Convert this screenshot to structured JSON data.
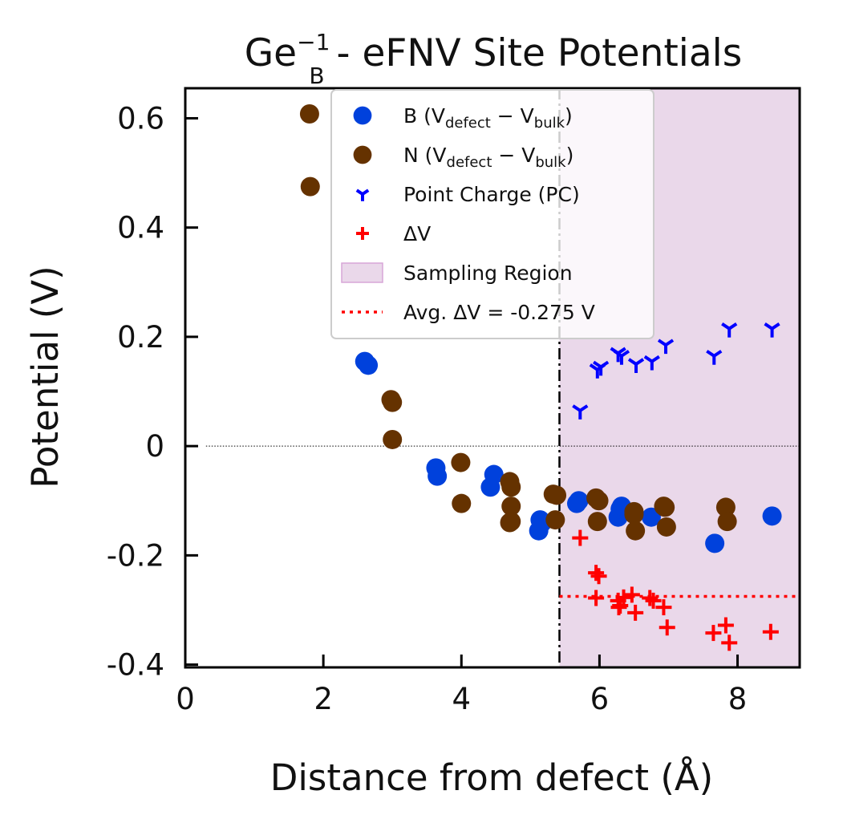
{
  "chart_data": {
    "type": "scatter",
    "title": {
      "prefix": "Ge",
      "sub": "B",
      "sup": "−1",
      "suffix": " - eFNV Site Potentials"
    },
    "xlabel": "Distance from defect (Å)",
    "ylabel": "Potential (V)",
    "xlim": [
      0,
      8.9
    ],
    "ylim": [
      -0.405,
      0.655
    ],
    "xticks": [
      0,
      2,
      4,
      6,
      8
    ],
    "xtick_labels": [
      "0",
      "2",
      "4",
      "6",
      "8"
    ],
    "yticks": [
      -0.4,
      -0.2,
      0,
      0.2,
      0.4,
      0.6
    ],
    "ytick_labels": [
      "-0.4",
      "-0.2",
      "0",
      "0.2",
      "0.4",
      "0.6"
    ],
    "grid": false,
    "zero_line": true,
    "sampling_region": {
      "x_start": 5.42,
      "x_end": 8.9,
      "color": "#ead8ea"
    },
    "avg_delta_v": {
      "value": -0.275,
      "x_start": 5.42,
      "x_end": 8.9,
      "color": "#ff0000"
    },
    "legend_placement": "upper-center",
    "legend": [
      {
        "marker": "circle",
        "color": "#0041dc",
        "base": "B (V",
        "s1": "defect",
        "mid": " − V",
        "s2": "bulk",
        "end": ")"
      },
      {
        "marker": "circle",
        "color": "#653200",
        "base": "N (V",
        "s1": "defect",
        "mid": " − V",
        "s2": "bulk",
        "end": ")"
      },
      {
        "marker": "tri",
        "color": "#0000ff",
        "text": "Point Charge (PC)"
      },
      {
        "marker": "plus",
        "color": "#ff0000",
        "text": "ΔV"
      },
      {
        "marker": "patch",
        "color": "#ead8ea",
        "text": "Sampling Region"
      },
      {
        "marker": "dotted",
        "color": "#ff0000",
        "text": "Avg. ΔV = -0.275 V"
      }
    ],
    "series": [
      {
        "name": "B (Vdefect − Vbulk)",
        "marker": "circle",
        "color": "#0041dc",
        "x": [
          2.6,
          2.65,
          3.63,
          3.65,
          4.42,
          4.47,
          5.12,
          5.14,
          5.17,
          5.67,
          5.7,
          6.27,
          6.3,
          6.32,
          6.75,
          7.67,
          8.5
        ],
        "y": [
          0.155,
          0.148,
          -0.04,
          -0.055,
          -0.075,
          -0.052,
          -0.155,
          -0.135,
          -0.14,
          -0.105,
          -0.1,
          -0.13,
          -0.115,
          -0.11,
          -0.13,
          -0.178,
          -0.128
        ]
      },
      {
        "name": "N (Vdefect − Vbulk)",
        "marker": "circle",
        "color": "#653200",
        "x": [
          1.8,
          1.81,
          2.98,
          3.0,
          3.0,
          3.99,
          4.0,
          4.7,
          4.72,
          4.72,
          4.72,
          4.7,
          5.33,
          5.38,
          5.36,
          5.95,
          5.99,
          5.97,
          6.5,
          6.5,
          6.52,
          6.95,
          6.97,
          6.93,
          7.83,
          7.85
        ],
        "y": [
          0.608,
          0.475,
          0.085,
          0.08,
          0.012,
          -0.03,
          -0.105,
          -0.065,
          -0.075,
          -0.11,
          -0.138,
          -0.14,
          -0.088,
          -0.09,
          -0.135,
          -0.095,
          -0.1,
          -0.138,
          -0.12,
          -0.125,
          -0.155,
          -0.112,
          -0.148,
          -0.11,
          -0.112,
          -0.138
        ]
      },
      {
        "name": "Point Charge (PC)",
        "marker": "tri",
        "color": "#0000ff",
        "x": [
          5.72,
          5.97,
          6.02,
          6.27,
          6.32,
          6.53,
          6.76,
          6.96,
          7.66,
          7.88,
          8.5
        ],
        "y": [
          0.065,
          0.14,
          0.145,
          0.17,
          0.165,
          0.15,
          0.155,
          0.185,
          0.165,
          0.215,
          0.215
        ]
      },
      {
        "name": "ΔV",
        "marker": "plus",
        "color": "#ff0000",
        "x": [
          5.72,
          5.95,
          5.99,
          5.95,
          6.27,
          6.3,
          6.35,
          6.28,
          6.47,
          6.52,
          6.73,
          6.78,
          6.93,
          6.98,
          7.65,
          7.83,
          7.88,
          8.48
        ],
        "y": [
          -0.168,
          -0.232,
          -0.238,
          -0.278,
          -0.283,
          -0.292,
          -0.277,
          -0.295,
          -0.272,
          -0.305,
          -0.278,
          -0.283,
          -0.295,
          -0.332,
          -0.342,
          -0.328,
          -0.36,
          -0.34
        ]
      }
    ]
  }
}
